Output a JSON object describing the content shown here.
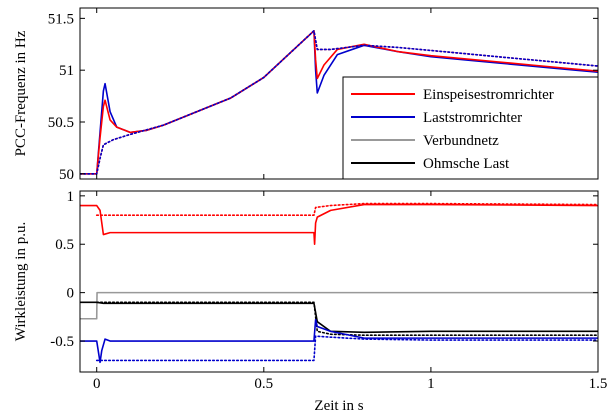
{
  "chart_data": [
    {
      "type": "line",
      "ylabel": "PCC-Frequenz in Hz",
      "xlim": [
        -0.05,
        1.5
      ],
      "ylim": [
        49.95,
        51.6
      ],
      "xticks": [
        0,
        0.5,
        1,
        1.5
      ],
      "xtick_labels": [
        "",
        "",
        "",
        ""
      ],
      "yticks": [
        50,
        50.5,
        51,
        51.5
      ],
      "ytick_labels": [
        "50",
        "50.5",
        "51",
        "51.5"
      ],
      "grid": false,
      "legend": {
        "position": "bottom-right",
        "entries": [
          {
            "label": "Einspeisestromrichter",
            "color": "#ff0000"
          },
          {
            "label": "Laststromrichter",
            "color": "#0000cc"
          },
          {
            "label": "Verbundnetz",
            "color": "#999999"
          },
          {
            "label": "Ohmsche Last",
            "color": "#000000"
          }
        ]
      },
      "series": [
        {
          "color": "#0000cc",
          "style": "solid",
          "x": [
            -0.05,
            0.0,
            0.01,
            0.02,
            0.025,
            0.04,
            0.06,
            0.1,
            0.15,
            0.2,
            0.3,
            0.4,
            0.5,
            0.6,
            0.65,
            0.655,
            0.66,
            0.68,
            0.72,
            0.8,
            0.9,
            1.0,
            1.1,
            1.2,
            1.3,
            1.4,
            1.5
          ],
          "y": [
            50.0,
            50.0,
            50.4,
            50.8,
            50.87,
            50.6,
            50.45,
            50.4,
            50.42,
            50.47,
            50.6,
            50.73,
            50.93,
            51.23,
            51.38,
            51.0,
            50.78,
            50.95,
            51.15,
            51.24,
            51.18,
            51.13,
            51.1,
            51.07,
            51.04,
            51.01,
            50.98
          ]
        },
        {
          "color": "#ff0000",
          "style": "solid",
          "x": [
            -0.05,
            0.0,
            0.01,
            0.02,
            0.025,
            0.04,
            0.06,
            0.1,
            0.15,
            0.2,
            0.3,
            0.4,
            0.5,
            0.6,
            0.65,
            0.655,
            0.66,
            0.68,
            0.72,
            0.8,
            0.9,
            1.0,
            1.1,
            1.2,
            1.3,
            1.4,
            1.5
          ],
          "y": [
            50.0,
            50.0,
            50.35,
            50.65,
            50.71,
            50.52,
            50.45,
            50.4,
            50.42,
            50.47,
            50.6,
            50.73,
            50.93,
            51.23,
            51.38,
            51.1,
            50.92,
            51.05,
            51.2,
            51.25,
            51.18,
            51.14,
            51.11,
            51.08,
            51.05,
            51.02,
            50.99
          ]
        },
        {
          "color": "#ff0000",
          "style": "dotted",
          "x": [
            -0.05,
            0.0,
            0.01,
            0.02,
            0.05,
            0.1,
            0.2,
            0.3,
            0.4,
            0.5,
            0.6,
            0.65,
            0.66,
            0.7,
            0.8,
            0.9,
            1.0,
            1.1,
            1.2,
            1.3,
            1.4,
            1.5
          ],
          "y": [
            50.0,
            50.0,
            50.15,
            50.28,
            50.33,
            50.38,
            50.47,
            50.6,
            50.73,
            50.93,
            51.23,
            51.38,
            51.2,
            51.2,
            51.24,
            51.22,
            51.19,
            51.16,
            51.13,
            51.1,
            51.07,
            51.04
          ]
        },
        {
          "color": "#0000cc",
          "style": "dotted",
          "x": [
            -0.05,
            0.0,
            0.01,
            0.02,
            0.05,
            0.1,
            0.2,
            0.3,
            0.4,
            0.5,
            0.6,
            0.65,
            0.66,
            0.7,
            0.8,
            0.9,
            1.0,
            1.1,
            1.2,
            1.3,
            1.4,
            1.5
          ],
          "y": [
            50.0,
            50.0,
            50.15,
            50.28,
            50.33,
            50.38,
            50.47,
            50.6,
            50.73,
            50.93,
            51.23,
            51.38,
            51.2,
            51.2,
            51.24,
            51.22,
            51.19,
            51.16,
            51.13,
            51.1,
            51.07,
            51.04
          ]
        }
      ]
    },
    {
      "type": "line",
      "xlabel": "Zeit in s",
      "ylabel": "Wirkleistung in p.u.",
      "xlim": [
        -0.05,
        1.5
      ],
      "ylim": [
        -0.82,
        1.05
      ],
      "xticks": [
        0,
        0.5,
        1,
        1.5
      ],
      "xtick_labels": [
        "0",
        "0.5",
        "1",
        "1.5"
      ],
      "yticks": [
        -0.5,
        0,
        0.5,
        1
      ],
      "ytick_labels": [
        "-0.5",
        "0",
        "0.5",
        "1"
      ],
      "grid": false,
      "series": [
        {
          "color": "#999999",
          "style": "solid",
          "x": [
            -0.05,
            0.0,
            0.001,
            1.5
          ],
          "y": [
            -0.27,
            -0.27,
            0.0,
            0.0
          ]
        },
        {
          "color": "#ff0000",
          "style": "solid",
          "x": [
            -0.05,
            0.0,
            0.01,
            0.02,
            0.04,
            0.1,
            0.3,
            0.5,
            0.65,
            0.652,
            0.655,
            0.66,
            0.7,
            0.8,
            1.0,
            1.5
          ],
          "y": [
            0.9,
            0.9,
            0.85,
            0.6,
            0.62,
            0.62,
            0.62,
            0.62,
            0.62,
            0.5,
            0.72,
            0.78,
            0.85,
            0.91,
            0.91,
            0.9
          ]
        },
        {
          "color": "#ff0000",
          "style": "dotted",
          "x": [
            0.0,
            0.65,
            0.655,
            0.7,
            0.8,
            1.0,
            1.5
          ],
          "y": [
            0.8,
            0.8,
            0.88,
            0.9,
            0.92,
            0.92,
            0.91
          ]
        },
        {
          "color": "#000000",
          "style": "solid",
          "x": [
            -0.05,
            0.0,
            0.02,
            0.65,
            0.66,
            0.7,
            0.8,
            1.0,
            1.5
          ],
          "y": [
            -0.1,
            -0.1,
            -0.11,
            -0.11,
            -0.3,
            -0.4,
            -0.41,
            -0.4,
            -0.4
          ]
        },
        {
          "color": "#000000",
          "style": "dotted",
          "x": [
            0.0,
            0.65,
            0.66,
            0.7,
            0.8,
            1.0,
            1.5
          ],
          "y": [
            -0.1,
            -0.1,
            -0.4,
            -0.43,
            -0.44,
            -0.44,
            -0.44
          ]
        },
        {
          "color": "#0000cc",
          "style": "solid",
          "x": [
            -0.05,
            0.0,
            0.01,
            0.015,
            0.025,
            0.04,
            0.1,
            0.3,
            0.5,
            0.65,
            0.655,
            0.66,
            0.7,
            0.8,
            1.0,
            1.5
          ],
          "y": [
            -0.5,
            -0.5,
            -0.72,
            -0.6,
            -0.48,
            -0.5,
            -0.5,
            -0.5,
            -0.5,
            -0.5,
            -0.28,
            -0.35,
            -0.4,
            -0.47,
            -0.47,
            -0.47
          ]
        },
        {
          "color": "#0000cc",
          "style": "dotted",
          "x": [
            0.0,
            0.65,
            0.655,
            0.7,
            0.8,
            1.0,
            1.5
          ],
          "y": [
            -0.7,
            -0.7,
            -0.45,
            -0.46,
            -0.48,
            -0.49,
            -0.49
          ]
        }
      ]
    }
  ]
}
